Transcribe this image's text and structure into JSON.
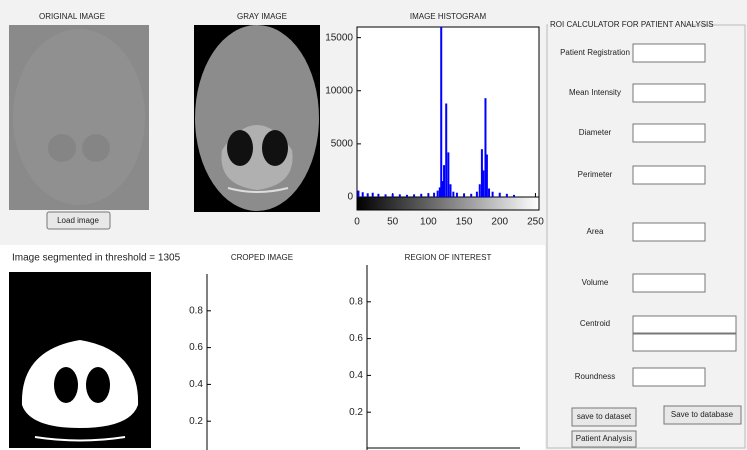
{
  "panels": {
    "original": "ORIGINAL IMAGE",
    "gray": "GRAY IMAGE",
    "cropped": "CROPED IMAGE",
    "roi": "REGION OF INTEREST"
  },
  "threshold_label": "Image segmented in threshold = 1305",
  "buttons": {
    "load": "Load image",
    "save_dataset": "save to dataset",
    "save_database": "Save to database",
    "analysis": "Patient Analysis"
  },
  "calculator": {
    "title": "ROI CALCULATOR FOR PATIENT ANALYSIS",
    "fields": [
      "Patient Registration",
      "Mean Intensity",
      "Diameter",
      "Perimeter",
      "Area",
      "Volume",
      "Centroid",
      "Roundness"
    ]
  },
  "chart_data": [
    {
      "type": "bar",
      "title": "IMAGE HISTOGRAM",
      "color": "#0000ff",
      "x": [
        2,
        8,
        15,
        22,
        30,
        40,
        50,
        60,
        70,
        80,
        90,
        100,
        108,
        113,
        116,
        118,
        120,
        122,
        125,
        128,
        131,
        135,
        140,
        150,
        160,
        168,
        172,
        175,
        177,
        180,
        182,
        185,
        190,
        200,
        210,
        220
      ],
      "values": [
        600,
        450,
        350,
        400,
        300,
        250,
        300,
        250,
        200,
        250,
        300,
        350,
        400,
        600,
        900,
        16000,
        1500,
        3000,
        8800,
        4200,
        1200,
        500,
        400,
        300,
        300,
        500,
        1200,
        4500,
        2500,
        9300,
        4000,
        800,
        500,
        400,
        300,
        200
      ],
      "xlim": [
        0,
        255
      ],
      "xticks": [
        0,
        50,
        100,
        150,
        200,
        250
      ],
      "ylim": [
        0,
        16000
      ],
      "yticks": [
        0,
        5000,
        10000,
        15000
      ]
    },
    {
      "type": "line",
      "series": [],
      "ylim": [
        0,
        1
      ],
      "yticks": [
        0.2,
        0.4,
        0.6,
        0.8
      ]
    },
    {
      "type": "line",
      "series": [],
      "ylim": [
        0,
        1
      ],
      "yticks": [
        0.2,
        0.4,
        0.6,
        0.8
      ]
    }
  ]
}
